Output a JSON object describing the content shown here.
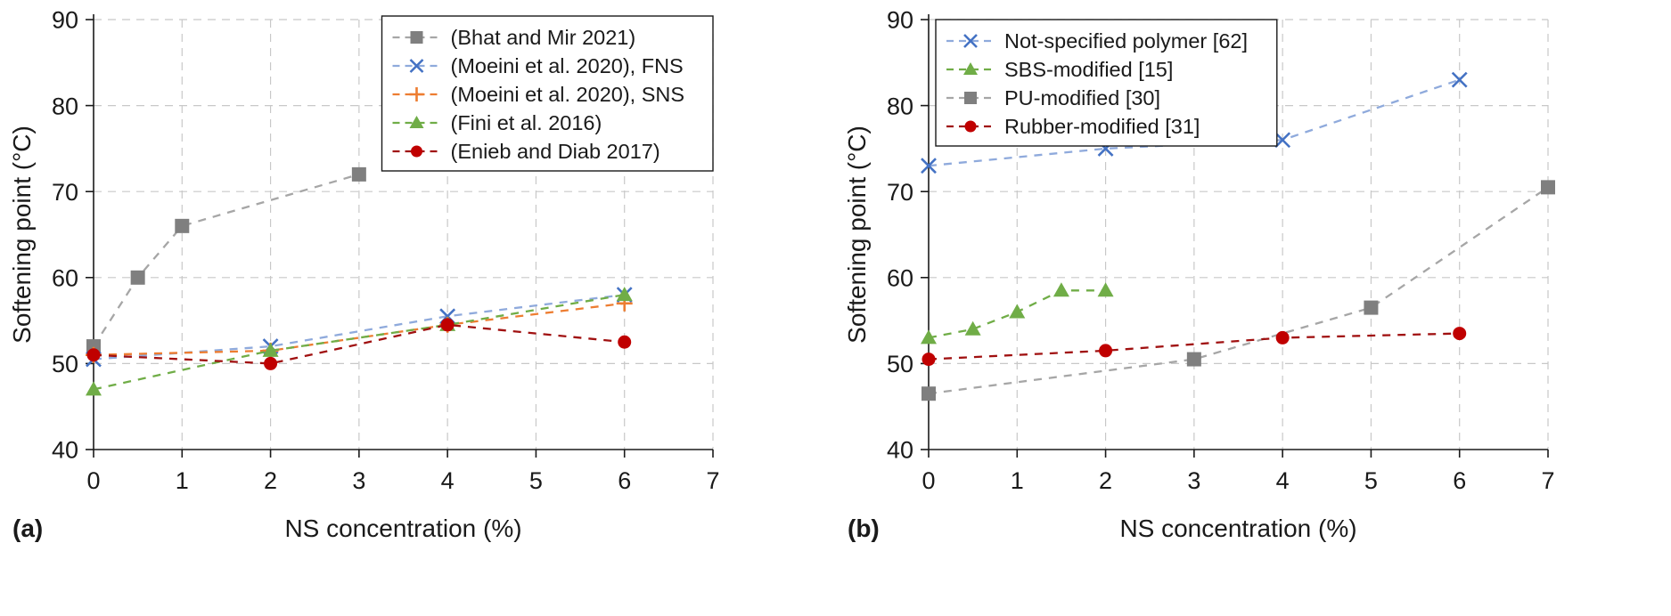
{
  "figure_title": "",
  "charts": [
    {
      "panel_label": "(a)",
      "type": "line",
      "title": "",
      "xlabel": "NS concentration (%)",
      "ylabel": "Softening point (°C)",
      "xlim": [
        0,
        7
      ],
      "ylim": [
        40,
        90
      ],
      "xticks": [
        0,
        1,
        2,
        3,
        4,
        5,
        6,
        7
      ],
      "yticks": [
        40,
        50,
        60,
        70,
        80,
        90
      ],
      "grid": true,
      "legend_position": "top-right",
      "series": [
        {
          "name": "(Bhat and Mir 2021)",
          "marker": "square",
          "color": "#7f7f7f",
          "line_color": "#a6a6a6",
          "x": [
            0,
            0.5,
            1,
            3
          ],
          "y": [
            52,
            60,
            66,
            72
          ]
        },
        {
          "name": "(Moeini et al. 2020), FNS",
          "marker": "x",
          "color": "#4472c4",
          "line_color": "#8faadc",
          "x": [
            0,
            2,
            4,
            6
          ],
          "y": [
            50.5,
            52,
            55.5,
            58
          ]
        },
        {
          "name": "(Moeini et al. 2020), SNS",
          "marker": "plus",
          "color": "#ed7d31",
          "line_color": "#ed7d31",
          "x": [
            0,
            2,
            4,
            6
          ],
          "y": [
            51,
            51.5,
            54.5,
            57
          ]
        },
        {
          "name": "(Fini et al. 2016)",
          "marker": "triangle",
          "color": "#70ad47",
          "line_color": "#70ad47",
          "x": [
            0,
            2,
            4,
            6
          ],
          "y": [
            47,
            51.5,
            54.5,
            58
          ]
        },
        {
          "name": "(Enieb and Diab 2017)",
          "marker": "circle",
          "color": "#c00000",
          "line_color": "#a01010",
          "x": [
            0,
            2,
            4,
            6
          ],
          "y": [
            51,
            50,
            54.5,
            52.5
          ]
        }
      ]
    },
    {
      "panel_label": "(b)",
      "type": "line",
      "title": "",
      "xlabel": "NS concentration (%)",
      "ylabel": "Softening point (°C)",
      "xlim": [
        0,
        7
      ],
      "ylim": [
        40,
        90
      ],
      "xticks": [
        0,
        1,
        2,
        3,
        4,
        5,
        6,
        7
      ],
      "yticks": [
        40,
        50,
        60,
        70,
        80,
        90
      ],
      "grid": true,
      "legend_position": "top-left",
      "series": [
        {
          "name": "Not-specified polymer [62]",
          "marker": "x",
          "color": "#4472c4",
          "line_color": "#8faadc",
          "x": [
            0,
            2,
            4,
            6
          ],
          "y": [
            73,
            75,
            76,
            83
          ]
        },
        {
          "name": "SBS-modified [15]",
          "marker": "triangle",
          "color": "#70ad47",
          "line_color": "#70ad47",
          "x": [
            0,
            0.5,
            1,
            1.5,
            2
          ],
          "y": [
            53,
            54,
            56,
            58.5,
            58.5
          ]
        },
        {
          "name": "PU-modified [30]",
          "marker": "square",
          "color": "#7f7f7f",
          "line_color": "#a6a6a6",
          "x": [
            0,
            3,
            5,
            7
          ],
          "y": [
            46.5,
            50.5,
            56.5,
            70.5
          ]
        },
        {
          "name": "Rubber-modified [31]",
          "marker": "circle",
          "color": "#c00000",
          "line_color": "#a01010",
          "x": [
            0,
            2,
            4,
            6
          ],
          "y": [
            50.5,
            51.5,
            53,
            53.5
          ]
        }
      ]
    }
  ]
}
